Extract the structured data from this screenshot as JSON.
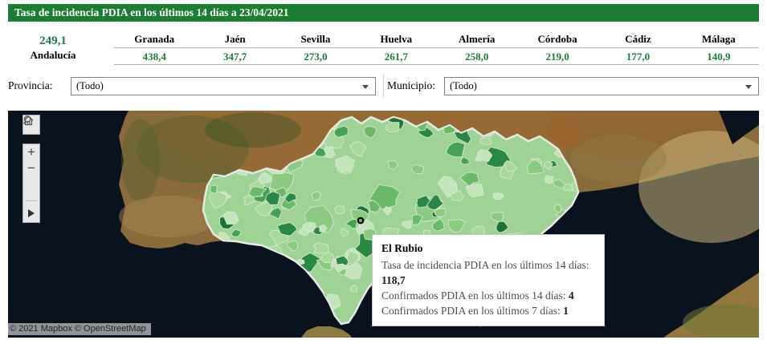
{
  "title_bar": {
    "title": "Tasa de incidencia PDIA en los últimos 14 días a 23/04/2021",
    "bg_color": "#1b7e33"
  },
  "summary": {
    "total": {
      "value": "249,1",
      "label": "Andalucía"
    },
    "value_color": "#1a7f37",
    "provinces": [
      {
        "name": "Granada",
        "value": "438,4"
      },
      {
        "name": "Jaén",
        "value": "347,7"
      },
      {
        "name": "Sevilla",
        "value": "273,0"
      },
      {
        "name": "Huelva",
        "value": "261,7"
      },
      {
        "name": "Almería",
        "value": "258,0"
      },
      {
        "name": "Córdoba",
        "value": "219,0"
      },
      {
        "name": "Cádiz",
        "value": "177,0"
      },
      {
        "name": "Málaga",
        "value": "140,9"
      }
    ]
  },
  "filters": {
    "provincia": {
      "label": "Provincia:",
      "value": "(Todo)"
    },
    "municipio": {
      "label": "Municipio:",
      "value": "(Todo)"
    }
  },
  "map": {
    "tooltip": {
      "title": "El Rubio",
      "lines": [
        {
          "label": "Tasa de incidencia PDIA en los últimos 14 días: ",
          "value": "118,7"
        },
        {
          "label": "Confirmados PDIA en los últimos 14 días: ",
          "value": "4"
        },
        {
          "label": "Confirmados PDIA en los últimos 7 días: ",
          "value": "1"
        }
      ]
    },
    "attribution": "© 2021 Mapbox © OpenStreetMap",
    "controls": {
      "search": "search",
      "zoom_in": "+",
      "zoom_out": "−",
      "home": "home",
      "expand": "expand"
    },
    "choropleth_palette": [
      "#c4e4bb",
      "#a8d89c",
      "#8cca82",
      "#6aba68",
      "#45a156",
      "#2a8846",
      "#1c7338"
    ],
    "region_base_color": "#9fd395",
    "ocean_color": "#0a121e"
  }
}
